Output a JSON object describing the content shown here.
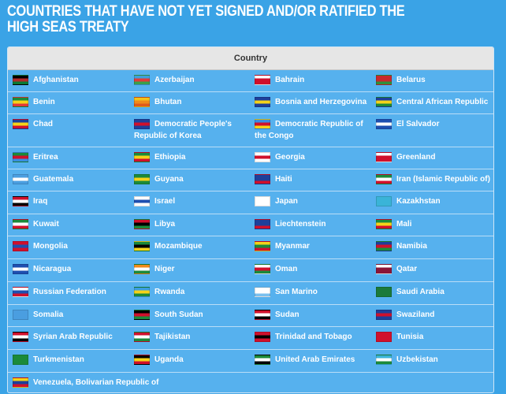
{
  "title": "COUNTRIES THAT HAVE NOT YET SIGNED AND/OR RATIFIED THE HIGH SEAS TREATY",
  "table": {
    "header": "Country",
    "countries": [
      {
        "name": "Afghanistan",
        "colors": [
          "#000000",
          "#b02a2a",
          "#0a7a34"
        ]
      },
      {
        "name": "Azerbaijan",
        "colors": [
          "#3ea0d8",
          "#e03a3a",
          "#3aa04a"
        ]
      },
      {
        "name": "Bahrain",
        "colors": [
          "#ffffff",
          "#d0102c",
          "#d0102c"
        ]
      },
      {
        "name": "Belarus",
        "colors": [
          "#c9272c",
          "#c9272c",
          "#2f8f3a"
        ]
      },
      {
        "name": "Benin",
        "colors": [
          "#1b8a3a",
          "#f4d21a",
          "#e03a3a"
        ]
      },
      {
        "name": "Bhutan",
        "colors": [
          "#f4c21a",
          "#f08a1a",
          "#e05a1a"
        ]
      },
      {
        "name": "Bosnia and Herzegovina",
        "colors": [
          "#1e3f9a",
          "#f4d21a",
          "#1e3f9a"
        ]
      },
      {
        "name": "Central African Republic",
        "colors": [
          "#1e3f9a",
          "#f4d21a",
          "#1b8a3a"
        ]
      },
      {
        "name": "Chad",
        "colors": [
          "#1e3f9a",
          "#f4d21a",
          "#d0102c"
        ]
      },
      {
        "name": "Democratic People's Republic of Korea",
        "colors": [
          "#1e3f9a",
          "#d0102c",
          "#1e3f9a"
        ]
      },
      {
        "name": "Democratic Republic of the Congo",
        "colors": [
          "#3a8ee0",
          "#d0102c",
          "#f4d21a"
        ]
      },
      {
        "name": "El Salvador",
        "colors": [
          "#1e4fb0",
          "#ffffff",
          "#1e4fb0"
        ]
      },
      {
        "name": "Eritrea",
        "colors": [
          "#1b8a3a",
          "#d0102c",
          "#3a8ee0"
        ]
      },
      {
        "name": "Ethiopia",
        "colors": [
          "#1b8a3a",
          "#f4d21a",
          "#d0102c"
        ]
      },
      {
        "name": "Georgia",
        "colors": [
          "#ffffff",
          "#d0102c",
          "#ffffff"
        ]
      },
      {
        "name": "Greenland",
        "colors": [
          "#ffffff",
          "#d0102c",
          "#d0102c"
        ]
      },
      {
        "name": "Guatemala",
        "colors": [
          "#4a9ee0",
          "#ffffff",
          "#4a9ee0"
        ]
      },
      {
        "name": "Guyana",
        "colors": [
          "#1b8a3a",
          "#f4d21a",
          "#1b8a3a"
        ]
      },
      {
        "name": "Haiti",
        "colors": [
          "#1e3f9a",
          "#1e3f9a",
          "#d0102c"
        ]
      },
      {
        "name": "Iran (Islamic Republic of)",
        "colors": [
          "#1b8a3a",
          "#ffffff",
          "#d0102c"
        ]
      },
      {
        "name": "Iraq",
        "colors": [
          "#d0102c",
          "#ffffff",
          "#000000"
        ]
      },
      {
        "name": "Israel",
        "colors": [
          "#ffffff",
          "#1e4fb0",
          "#ffffff"
        ]
      },
      {
        "name": "Japan",
        "colors": [
          "#ffffff",
          "#ffffff",
          "#ffffff"
        ]
      },
      {
        "name": "Kazakhstan",
        "colors": [
          "#3ab4d8",
          "#3ab4d8",
          "#3ab4d8"
        ]
      },
      {
        "name": "Kuwait",
        "colors": [
          "#1b8a3a",
          "#ffffff",
          "#d0102c"
        ]
      },
      {
        "name": "Libya",
        "colors": [
          "#d0102c",
          "#000000",
          "#1b8a3a"
        ]
      },
      {
        "name": "Liechtenstein",
        "colors": [
          "#1e3f9a",
          "#1e3f9a",
          "#d0102c"
        ]
      },
      {
        "name": "Mali",
        "colors": [
          "#1b8a3a",
          "#f4d21a",
          "#d0102c"
        ]
      },
      {
        "name": "Mongolia",
        "colors": [
          "#d0102c",
          "#1e4fb0",
          "#d0102c"
        ]
      },
      {
        "name": "Mozambique",
        "colors": [
          "#1b8a3a",
          "#000000",
          "#f4d21a"
        ]
      },
      {
        "name": "Myanmar",
        "colors": [
          "#f4d21a",
          "#1b8a3a",
          "#d0102c"
        ]
      },
      {
        "name": "Namibia",
        "colors": [
          "#1e3f9a",
          "#d0102c",
          "#1b8a3a"
        ]
      },
      {
        "name": "Nicaragua",
        "colors": [
          "#1e4fb0",
          "#ffffff",
          "#1e4fb0"
        ]
      },
      {
        "name": "Niger",
        "colors": [
          "#f08a1a",
          "#ffffff",
          "#1b8a3a"
        ]
      },
      {
        "name": "Oman",
        "colors": [
          "#ffffff",
          "#d0102c",
          "#1b8a3a"
        ]
      },
      {
        "name": "Qatar",
        "colors": [
          "#ffffff",
          "#8a1538",
          "#8a1538"
        ]
      },
      {
        "name": "Russian Federation",
        "colors": [
          "#ffffff",
          "#1e4fb0",
          "#d0102c"
        ]
      },
      {
        "name": "Rwanda",
        "colors": [
          "#3a9ee0",
          "#f4d21a",
          "#1b8a3a"
        ]
      },
      {
        "name": "San Marino",
        "colors": [
          "#ffffff",
          "#ffffff",
          "#7ac0ee"
        ]
      },
      {
        "name": "Saudi Arabia",
        "colors": [
          "#1b7a3a",
          "#1b7a3a",
          "#1b7a3a"
        ]
      },
      {
        "name": "Somalia",
        "colors": [
          "#4a9ee0",
          "#4a9ee0",
          "#4a9ee0"
        ]
      },
      {
        "name": "South Sudan",
        "colors": [
          "#000000",
          "#d0102c",
          "#1b8a3a"
        ]
      },
      {
        "name": "Sudan",
        "colors": [
          "#d0102c",
          "#ffffff",
          "#000000"
        ]
      },
      {
        "name": "Swaziland",
        "colors": [
          "#1e3f9a",
          "#d0102c",
          "#1e3f9a"
        ]
      },
      {
        "name": "Syrian Arab Republic",
        "colors": [
          "#d0102c",
          "#ffffff",
          "#000000"
        ]
      },
      {
        "name": "Tajikistan",
        "colors": [
          "#d0102c",
          "#ffffff",
          "#1b8a3a"
        ]
      },
      {
        "name": "Trinidad and Tobago",
        "colors": [
          "#d0102c",
          "#000000",
          "#d0102c"
        ]
      },
      {
        "name": "Tunisia",
        "colors": [
          "#d0102c",
          "#d0102c",
          "#d0102c"
        ]
      },
      {
        "name": "Turkmenistan",
        "colors": [
          "#1b8a3a",
          "#1b8a3a",
          "#1b8a3a"
        ]
      },
      {
        "name": "Uganda",
        "colors": [
          "#000000",
          "#f4d21a",
          "#d0102c"
        ]
      },
      {
        "name": "United Arab Emirates",
        "colors": [
          "#1b8a3a",
          "#ffffff",
          "#000000"
        ]
      },
      {
        "name": "Uzbekistan",
        "colors": [
          "#3ab4d8",
          "#ffffff",
          "#1b8a3a"
        ]
      },
      {
        "name": "Venezuela, Bolivarian Republic of",
        "colors": [
          "#f4d21a",
          "#1e3f9a",
          "#d0102c"
        ]
      }
    ]
  }
}
